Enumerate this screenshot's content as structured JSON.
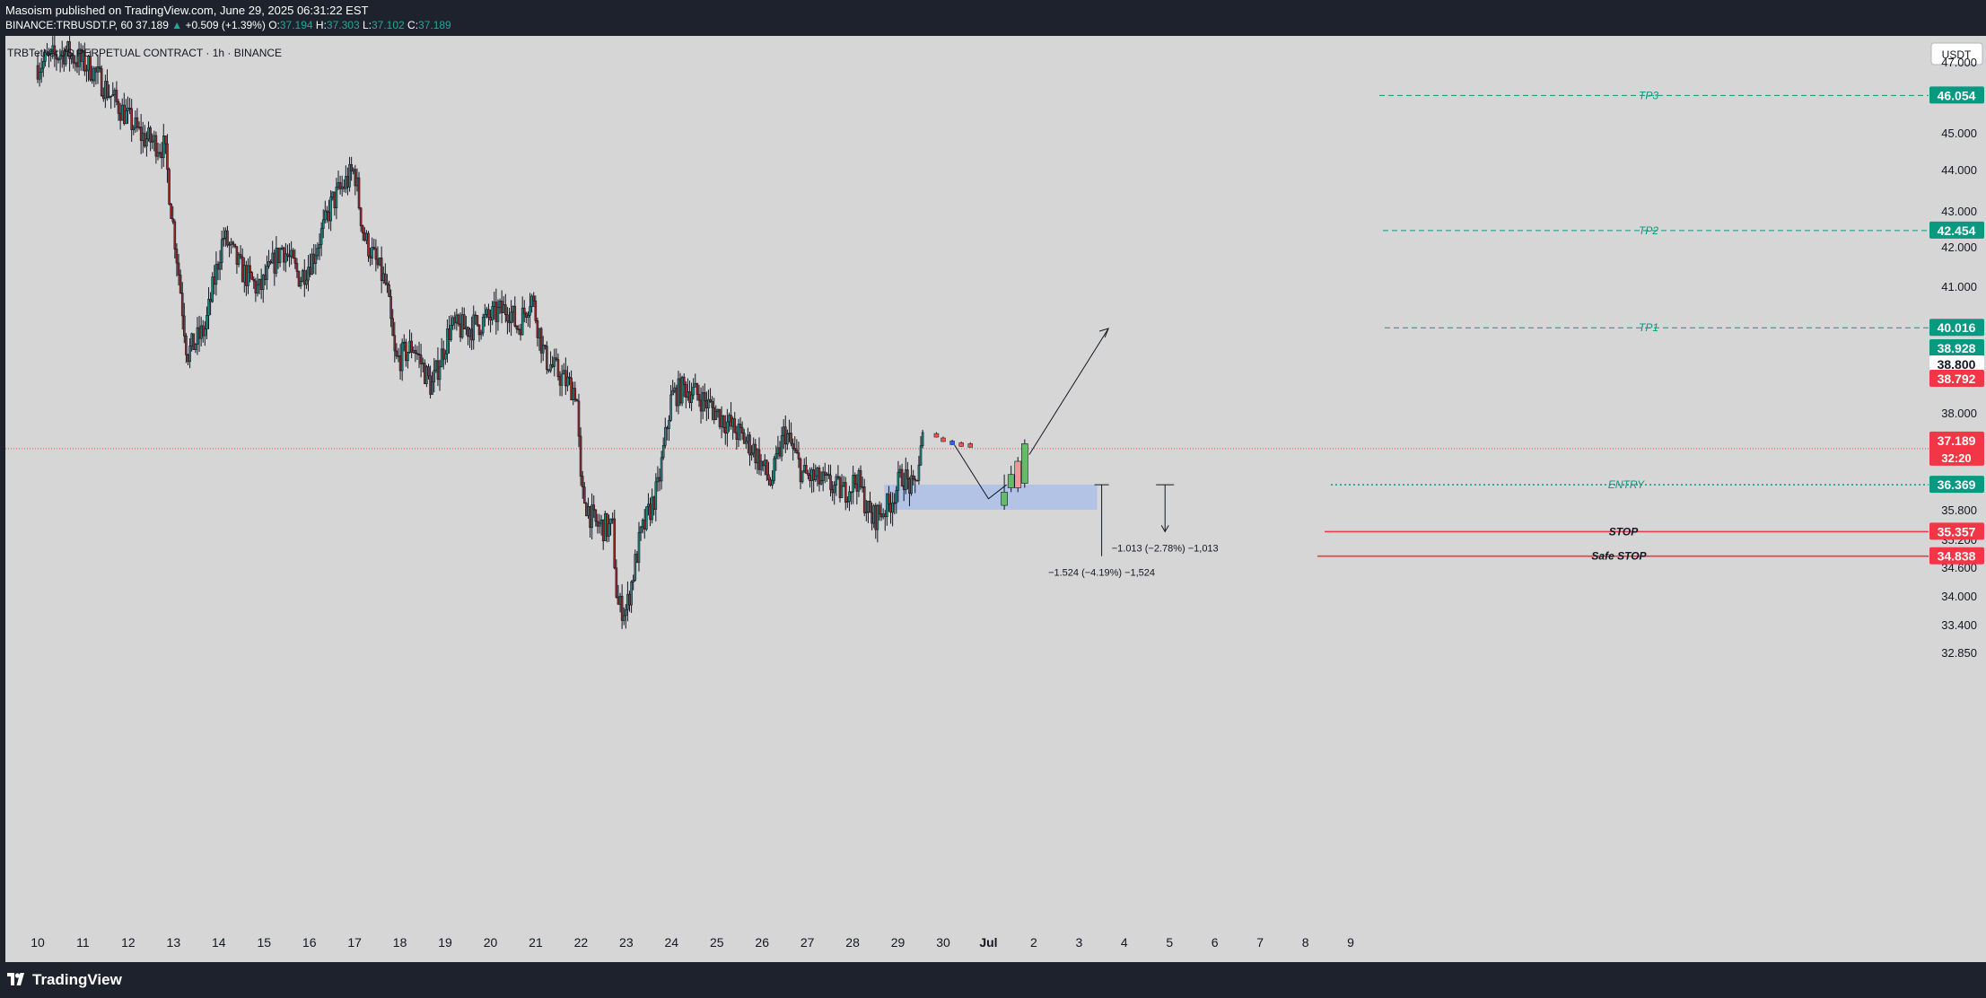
{
  "header": {
    "published": "Masoism published on TradingView.com, June 29, 2025 06:31:22 EST",
    "symbol_line": "BINANCE:TRBUSDT.P, 60",
    "last": "37.189",
    "change": "+0.509 (+1.39%)",
    "o_label": "O:",
    "o": "37.194",
    "h_label": "H:",
    "h": "37.303",
    "l_label": "L:",
    "l": "37.102",
    "c_label": "C:",
    "c": "37.189"
  },
  "chart_title": "TRBTetherUS PERPETUAL CONTRACT · 1h · BINANCE",
  "currency_button": "USDT",
  "footer": {
    "brand": "TradingView"
  },
  "colors": {
    "background": "#d6d6d6",
    "up": "#26a69a",
    "down": "#ef5350",
    "target": "#089981",
    "stop": "#f23645",
    "zone": "#a6bceb",
    "frame": "#1e222d"
  },
  "chart_data": {
    "type": "candlestick",
    "title": "TRBTetherUS PERPETUAL CONTRACT · 1h · BINANCE",
    "x_ticks": [
      "10",
      "11",
      "12",
      "13",
      "14",
      "15",
      "16",
      "17",
      "18",
      "19",
      "20",
      "21",
      "22",
      "23",
      "24",
      "25",
      "26",
      "27",
      "28",
      "29",
      "30",
      "Jul",
      "2",
      "3",
      "4",
      "5",
      "6",
      "7",
      "8",
      "9"
    ],
    "y_ticks": [
      47.0,
      45.0,
      44.0,
      43.0,
      42.0,
      41.0,
      38.0,
      35.8,
      35.2,
      34.6,
      34.0,
      33.4,
      32.85
    ],
    "y_range": [
      32.55,
      47.55
    ],
    "grid": false,
    "close_path": [
      {
        "day": 10,
        "price": 46.9
      },
      {
        "day": 10.6,
        "price": 47.3
      },
      {
        "day": 11.2,
        "price": 46.8
      },
      {
        "day": 11.7,
        "price": 45.9
      },
      {
        "day": 12.3,
        "price": 44.9
      },
      {
        "day": 12.8,
        "price": 44.6
      },
      {
        "day": 13.0,
        "price": 42.5
      },
      {
        "day": 13.3,
        "price": 39.4
      },
      {
        "day": 13.7,
        "price": 40.0
      },
      {
        "day": 14.1,
        "price": 42.3
      },
      {
        "day": 14.5,
        "price": 41.4
      },
      {
        "day": 14.9,
        "price": 40.9
      },
      {
        "day": 15.4,
        "price": 42.0
      },
      {
        "day": 15.8,
        "price": 41.2
      },
      {
        "day": 16.1,
        "price": 41.8
      },
      {
        "day": 16.5,
        "price": 43.2
      },
      {
        "day": 17.0,
        "price": 44.0
      },
      {
        "day": 17.2,
        "price": 42.3
      },
      {
        "day": 17.7,
        "price": 41.0
      },
      {
        "day": 17.9,
        "price": 39.2
      },
      {
        "day": 18.3,
        "price": 39.6
      },
      {
        "day": 18.7,
        "price": 38.6
      },
      {
        "day": 19.1,
        "price": 40.0
      },
      {
        "day": 19.5,
        "price": 40.0
      },
      {
        "day": 19.9,
        "price": 40.2
      },
      {
        "day": 20.4,
        "price": 40.5
      },
      {
        "day": 20.6,
        "price": 40.0
      },
      {
        "day": 20.9,
        "price": 40.8
      },
      {
        "day": 21.2,
        "price": 39.3
      },
      {
        "day": 21.6,
        "price": 38.8
      },
      {
        "day": 21.9,
        "price": 38.5
      },
      {
        "day": 22.0,
        "price": 36.2
      },
      {
        "day": 22.3,
        "price": 35.5
      },
      {
        "day": 22.7,
        "price": 35.4
      },
      {
        "day": 22.8,
        "price": 33.8
      },
      {
        "day": 23.0,
        "price": 33.7
      },
      {
        "day": 23.3,
        "price": 35.2
      },
      {
        "day": 23.7,
        "price": 36.3
      },
      {
        "day": 24.0,
        "price": 38.4
      },
      {
        "day": 24.3,
        "price": 38.6
      },
      {
        "day": 24.6,
        "price": 38.4
      },
      {
        "day": 25.0,
        "price": 38.0
      },
      {
        "day": 25.4,
        "price": 37.6
      },
      {
        "day": 25.8,
        "price": 37.2
      },
      {
        "day": 26.2,
        "price": 36.4
      },
      {
        "day": 26.5,
        "price": 37.6
      },
      {
        "day": 26.9,
        "price": 36.6
      },
      {
        "day": 27.4,
        "price": 36.4
      },
      {
        "day": 27.8,
        "price": 36.2
      },
      {
        "day": 28.1,
        "price": 36.5
      },
      {
        "day": 28.4,
        "price": 35.6
      },
      {
        "day": 28.8,
        "price": 35.9
      },
      {
        "day": 29.1,
        "price": 36.6
      },
      {
        "day": 29.35,
        "price": 36.2
      },
      {
        "day": 29.55,
        "price": 37.4
      }
    ],
    "projection": [
      {
        "day": 29.85,
        "price": 37.5
      },
      {
        "day": 30.0,
        "price": 37.4
      },
      {
        "day": 30.2,
        "price": 37.33
      },
      {
        "day": 30.4,
        "price": 37.29
      },
      {
        "day": 30.6,
        "price": 37.27
      }
    ],
    "levels": [
      {
        "label": "TP3",
        "price": 46.054,
        "price_label": "46.054",
        "kind": "target"
      },
      {
        "label": "TP2",
        "price": 42.454,
        "price_label": "42.454",
        "kind": "target"
      },
      {
        "label": "TP1",
        "price": 40.016,
        "price_label": "40.016",
        "kind": "target"
      },
      {
        "label": "ENTRY",
        "price": 36.369,
        "price_label": "36.369",
        "kind": "entry"
      },
      {
        "label": "STOP",
        "price": 35.357,
        "price_label": "35.357",
        "kind": "stop"
      },
      {
        "label": "Safe STOP",
        "price": 34.838,
        "price_label": "34.838",
        "kind": "stop"
      }
    ],
    "axis_badges": [
      {
        "text": "38.928",
        "price": 38.928,
        "style": "green"
      },
      {
        "text": "38.800",
        "price": 38.8,
        "style": "white"
      },
      {
        "text": "38.792",
        "price": 38.792,
        "style": "red"
      },
      {
        "text": "37.189",
        "sub": "32:20",
        "price": 37.189,
        "style": "red"
      }
    ],
    "current_price": 37.189,
    "measures": [
      {
        "text": "−1.013 (−2.78%) −1,013"
      },
      {
        "text": "−1.524 (−4.19%) −1,524"
      }
    ],
    "entry_zone": {
      "from_day": 28.7,
      "to_day": 33.4,
      "low": 35.8,
      "high": 36.369
    }
  }
}
